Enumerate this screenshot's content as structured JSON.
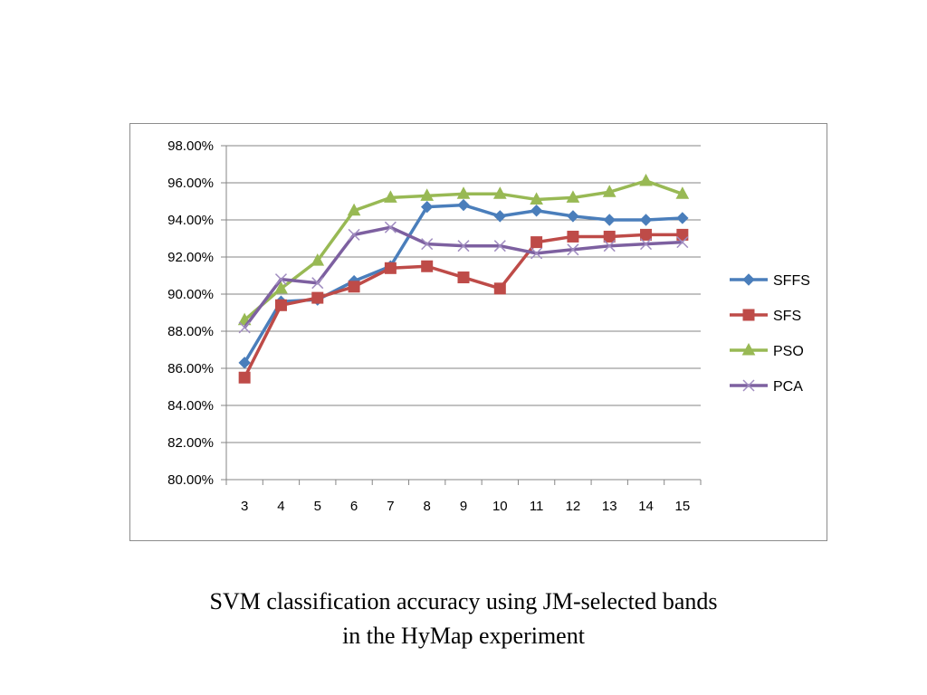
{
  "caption": {
    "line1": "SVM classification accuracy using JM-selected bands",
    "line2": "in the HyMap experiment"
  },
  "chart_data": {
    "type": "line",
    "categories": [
      "3",
      "4",
      "5",
      "6",
      "7",
      "8",
      "9",
      "10",
      "11",
      "12",
      "13",
      "14",
      "15"
    ],
    "ylim": [
      80,
      98
    ],
    "yticks": [
      80,
      82,
      84,
      86,
      88,
      90,
      92,
      94,
      96,
      98
    ],
    "ytick_labels": [
      "80.00%",
      "82.00%",
      "84.00%",
      "86.00%",
      "88.00%",
      "90.00%",
      "92.00%",
      "94.00%",
      "96.00%",
      "98.00%"
    ],
    "grid": "horizontal",
    "legend_position": "right",
    "series": [
      {
        "name": "SFFS",
        "color": "#4a7ebb",
        "marker": "diamond",
        "values": [
          86.3,
          89.6,
          89.7,
          90.7,
          91.5,
          94.7,
          94.8,
          94.2,
          94.5,
          94.2,
          94.0,
          94.0,
          94.1
        ]
      },
      {
        "name": "SFS",
        "color": "#be4b48",
        "marker": "square",
        "values": [
          85.5,
          89.4,
          89.8,
          90.4,
          91.4,
          91.5,
          90.9,
          90.3,
          92.8,
          93.1,
          93.1,
          93.2,
          93.2
        ]
      },
      {
        "name": "PSO",
        "color": "#98b954",
        "marker": "triangle",
        "values": [
          88.6,
          90.3,
          91.8,
          94.5,
          95.2,
          95.3,
          95.4,
          95.4,
          95.1,
          95.2,
          95.5,
          96.1,
          95.4
        ]
      },
      {
        "name": "PCA",
        "color": "#7d60a0",
        "marker": "x",
        "values": [
          88.2,
          90.8,
          90.6,
          93.2,
          93.6,
          92.7,
          92.6,
          92.6,
          92.2,
          92.4,
          92.6,
          92.7,
          92.8
        ]
      }
    ]
  }
}
